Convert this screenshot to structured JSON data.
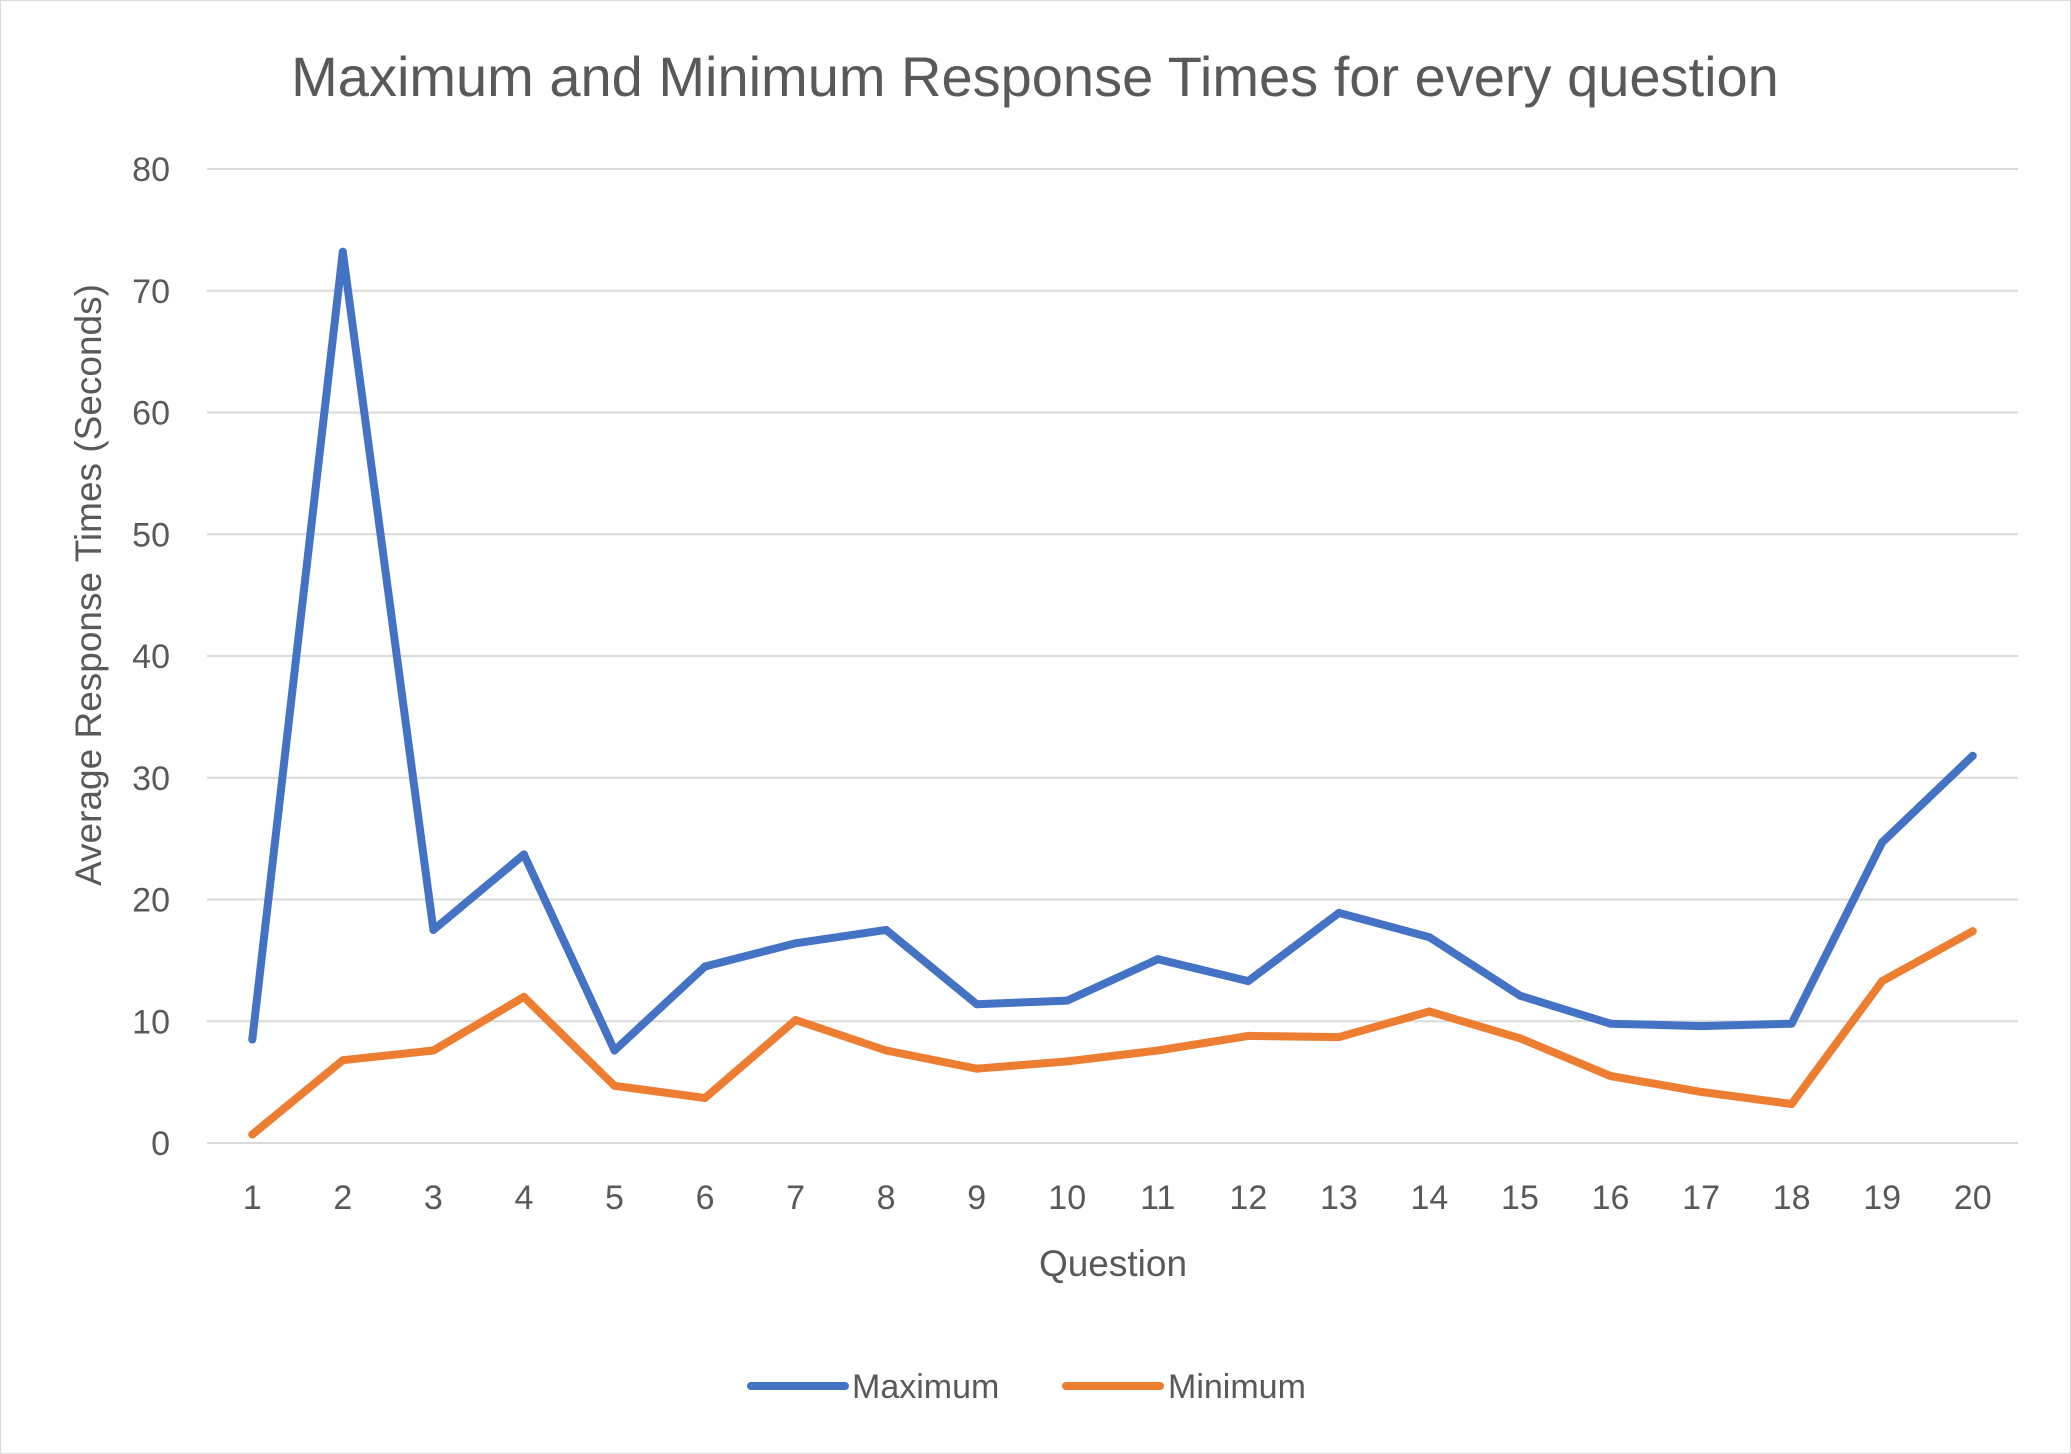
{
  "chart_data": {
    "type": "line",
    "title": "Maximum and Minimum Response Times for every question",
    "xlabel": "Question",
    "ylabel": "Average Response Times (Seconds)",
    "categories": [
      "1",
      "2",
      "3",
      "4",
      "5",
      "6",
      "7",
      "8",
      "9",
      "10",
      "11",
      "12",
      "13",
      "14",
      "15",
      "16",
      "17",
      "18",
      "19",
      "20"
    ],
    "ylim": [
      0,
      80
    ],
    "yticks": [
      "0",
      "10",
      "20",
      "30",
      "40",
      "50",
      "60",
      "70",
      "80"
    ],
    "grid": true,
    "legend_position": "bottom",
    "series": [
      {
        "name": "Maximum",
        "color": "#4472c4",
        "values": [
          8.5,
          73.2,
          17.5,
          23.7,
          7.6,
          14.5,
          16.4,
          17.5,
          11.4,
          11.7,
          15.1,
          13.3,
          18.9,
          16.9,
          12.1,
          9.8,
          9.6,
          9.8,
          24.7,
          31.8
        ]
      },
      {
        "name": "Minimum",
        "color": "#ed7d31",
        "values": [
          0.7,
          6.8,
          7.6,
          12.0,
          4.7,
          3.7,
          10.1,
          7.6,
          6.1,
          6.7,
          7.6,
          8.8,
          8.7,
          10.8,
          8.6,
          5.5,
          4.2,
          3.2,
          13.3,
          17.4
        ]
      }
    ]
  }
}
